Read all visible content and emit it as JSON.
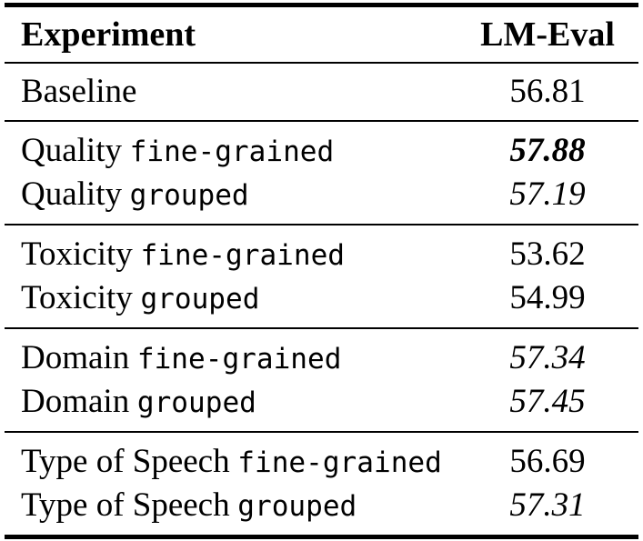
{
  "table": {
    "columns": [
      {
        "label": "Experiment"
      },
      {
        "label": "LM-Eval"
      }
    ],
    "sections": [
      {
        "name": "baseline",
        "rows": [
          {
            "experiment": "Baseline",
            "variant": "",
            "value": "56.81",
            "value_style": "normal"
          }
        ]
      },
      {
        "name": "quality",
        "rows": [
          {
            "experiment": "Quality",
            "variant": "fine-grained",
            "value": "57.88",
            "value_style": "bold-italic"
          },
          {
            "experiment": "Quality",
            "variant": "grouped",
            "value": "57.19",
            "value_style": "italic"
          }
        ]
      },
      {
        "name": "toxicity",
        "rows": [
          {
            "experiment": "Toxicity",
            "variant": "fine-grained",
            "value": "53.62",
            "value_style": "normal"
          },
          {
            "experiment": "Toxicity",
            "variant": "grouped",
            "value": "54.99",
            "value_style": "normal"
          }
        ]
      },
      {
        "name": "domain",
        "rows": [
          {
            "experiment": "Domain",
            "variant": "fine-grained",
            "value": "57.34",
            "value_style": "italic"
          },
          {
            "experiment": "Domain",
            "variant": "grouped",
            "value": "57.45",
            "value_style": "italic"
          }
        ]
      },
      {
        "name": "type-of-speech",
        "rows": [
          {
            "experiment": "Type of Speech",
            "variant": "fine-grained",
            "value": "56.69",
            "value_style": "normal"
          },
          {
            "experiment": "Type of Speech",
            "variant": "grouped",
            "value": "57.31",
            "value_style": "italic"
          }
        ]
      }
    ]
  },
  "chart_data": {
    "type": "table",
    "columns": [
      "Experiment",
      "LM-Eval"
    ],
    "rows": [
      [
        "Baseline",
        56.81
      ],
      [
        "Quality fine-grained",
        57.88
      ],
      [
        "Quality grouped",
        57.19
      ],
      [
        "Toxicity fine-grained",
        53.62
      ],
      [
        "Toxicity grouped",
        54.99
      ],
      [
        "Domain fine-grained",
        57.34
      ],
      [
        "Domain grouped",
        57.45
      ],
      [
        "Type of Speech fine-grained",
        56.69
      ],
      [
        "Type of Speech grouped",
        57.31
      ]
    ],
    "emphasis": {
      "bold_italic": [
        "57.88"
      ],
      "italic": [
        "57.19",
        "57.34",
        "57.45",
        "57.31"
      ]
    }
  }
}
